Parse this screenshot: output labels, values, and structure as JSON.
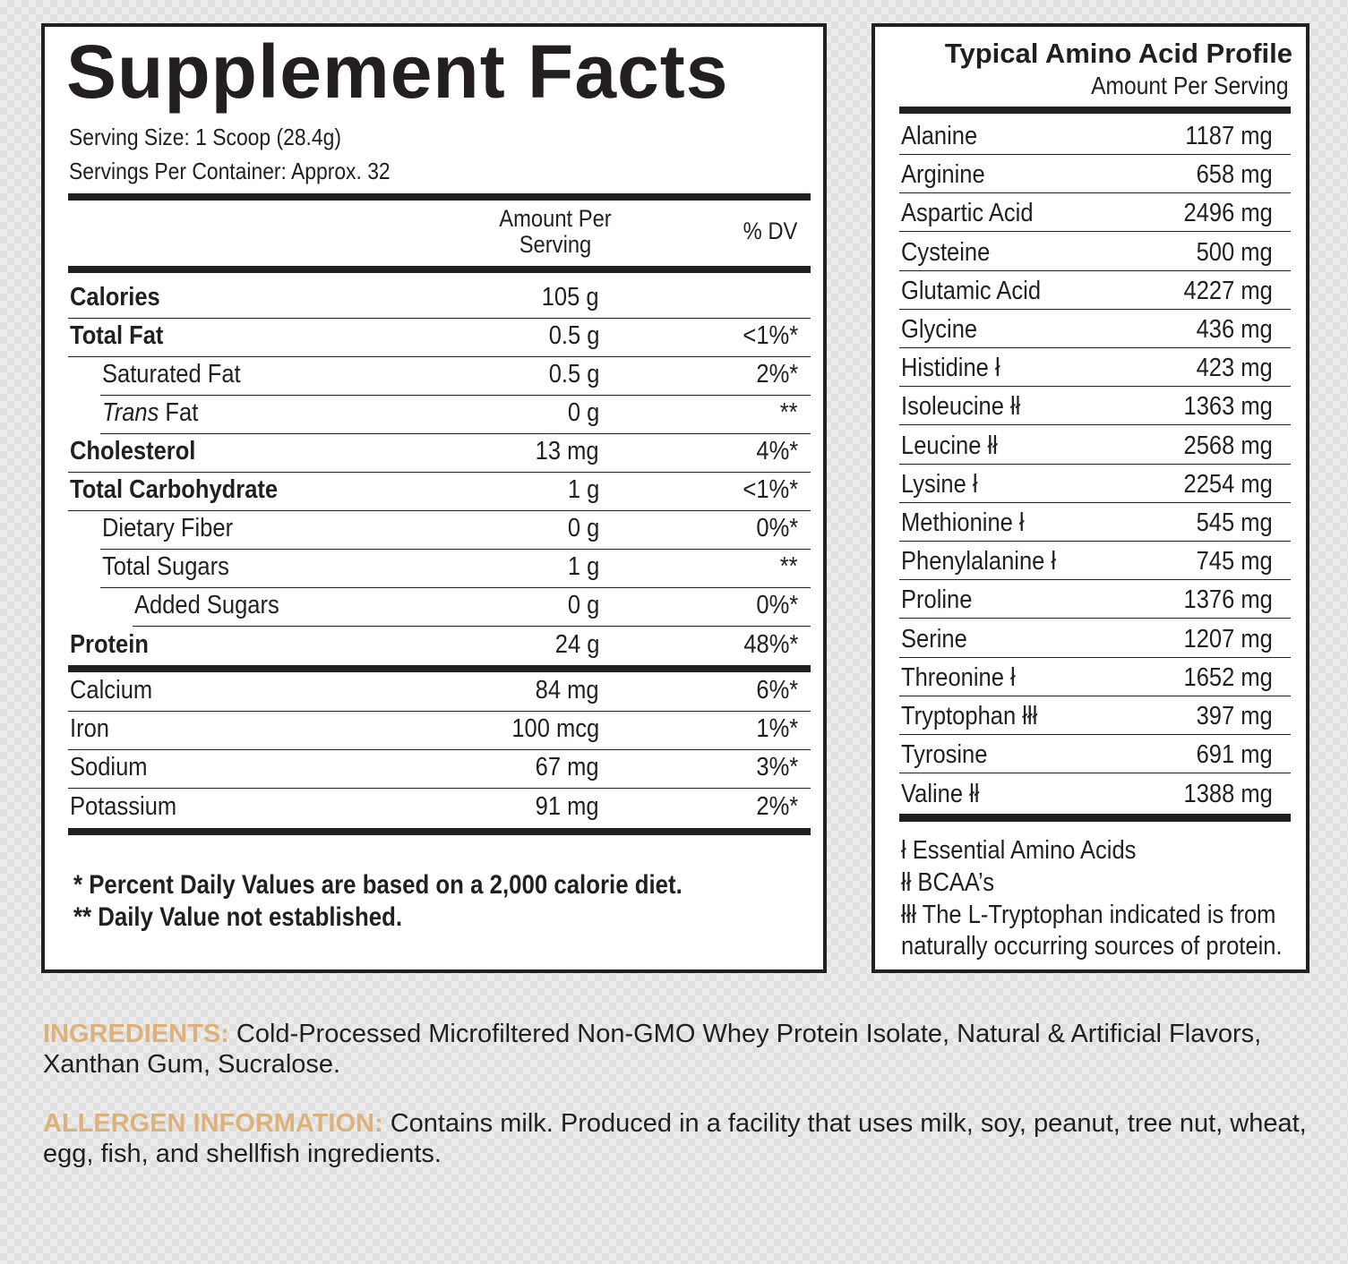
{
  "supplement_facts": {
    "title": "Supplement Facts",
    "serving_size": "Serving Size: 1 Scoop (28.4g)",
    "servings_per_container": "Servings Per Container: Approx. 32",
    "col_amount_line1": "Amount Per",
    "col_amount_line2": "Serving",
    "col_dv": "% DV",
    "rows": [
      {
        "name": "Calories",
        "amount": "105 g",
        "dv": ""
      },
      {
        "name": "Total Fat",
        "amount": "0.5 g",
        "dv": "<1%*"
      },
      {
        "name": "Saturated Fat",
        "amount": "0.5 g",
        "dv": "2%*"
      },
      {
        "name_italic": "Trans",
        "name": " Fat",
        "amount": "0 g",
        "dv": "**"
      },
      {
        "name": "Cholesterol",
        "amount": "13 mg",
        "dv": "4%*"
      },
      {
        "name": "Total Carbohydrate",
        "amount": "1 g",
        "dv": "<1%*"
      },
      {
        "name": "Dietary Fiber",
        "amount": "0 g",
        "dv": "0%*"
      },
      {
        "name": "Total Sugars",
        "amount": "1 g",
        "dv": "**"
      },
      {
        "name": "Added Sugars",
        "amount": "0 g",
        "dv": "0%*"
      },
      {
        "name": "Protein",
        "amount": "24 g",
        "dv": "48%*"
      },
      {
        "name": "Calcium",
        "amount": "84 mg",
        "dv": "6%*"
      },
      {
        "name": "Iron",
        "amount": "100 mcg",
        "dv": "1%*"
      },
      {
        "name": "Sodium",
        "amount": "67 mg",
        "dv": "3%*"
      },
      {
        "name": "Potassium",
        "amount": "91 mg",
        "dv": "2%*"
      }
    ],
    "footnote1": "* Percent Daily Values are based on a 2,000 calorie diet.",
    "footnote2": "** Daily Value not established."
  },
  "amino_profile": {
    "title": "Typical Amino Acid Profile",
    "subtitle": "Amount Per Serving",
    "rows": [
      {
        "name": "Alanine",
        "value": "1187 mg"
      },
      {
        "name": "Arginine",
        "value": "658 mg"
      },
      {
        "name": "Aspartic Acid",
        "value": "2496 mg"
      },
      {
        "name": "Cysteine",
        "value": "500 mg"
      },
      {
        "name": "Glutamic Acid",
        "value": "4227 mg"
      },
      {
        "name": "Glycine",
        "value": "436 mg"
      },
      {
        "name": "Histidine ł",
        "value": "423 mg"
      },
      {
        "name": "Isoleucine łł",
        "value": "1363 mg"
      },
      {
        "name": "Leucine łł",
        "value": "2568 mg"
      },
      {
        "name": "Lysine ł",
        "value": "2254 mg"
      },
      {
        "name": "Methionine ł",
        "value": "545 mg"
      },
      {
        "name": "Phenylalanine ł",
        "value": "745 mg"
      },
      {
        "name": "Proline",
        "value": "1376 mg"
      },
      {
        "name": "Serine",
        "value": "1207 mg"
      },
      {
        "name": "Threonine ł",
        "value": "1652 mg"
      },
      {
        "name": "Tryptophan łłł",
        "value": "397 mg"
      },
      {
        "name": "Tyrosine",
        "value": "691 mg"
      },
      {
        "name": "Valine łł",
        "value": "1388 mg"
      }
    ],
    "legend": [
      "ł Essential Amino Acids",
      "łł BCAA’s",
      "łłł The L-Tryptophan indicated is from",
      "naturally occurring sources of protein."
    ]
  },
  "ingredients": {
    "label": "INGREDIENTS:",
    "text": " Cold-Processed Microfiltered Non-GMO Whey Protein Isolate, Natural & Artificial Flavors, Xanthan Gum, Sucralose."
  },
  "allergen": {
    "label": "ALLERGEN INFORMATION:",
    "text": " Contains milk. Produced in a facility that uses milk, soy, peanut, tree nut, wheat, egg, fish, and shellfish ingredients."
  },
  "colors": {
    "text": "#231f20",
    "label_accent": "#ddb27a",
    "background": "#ececec"
  }
}
